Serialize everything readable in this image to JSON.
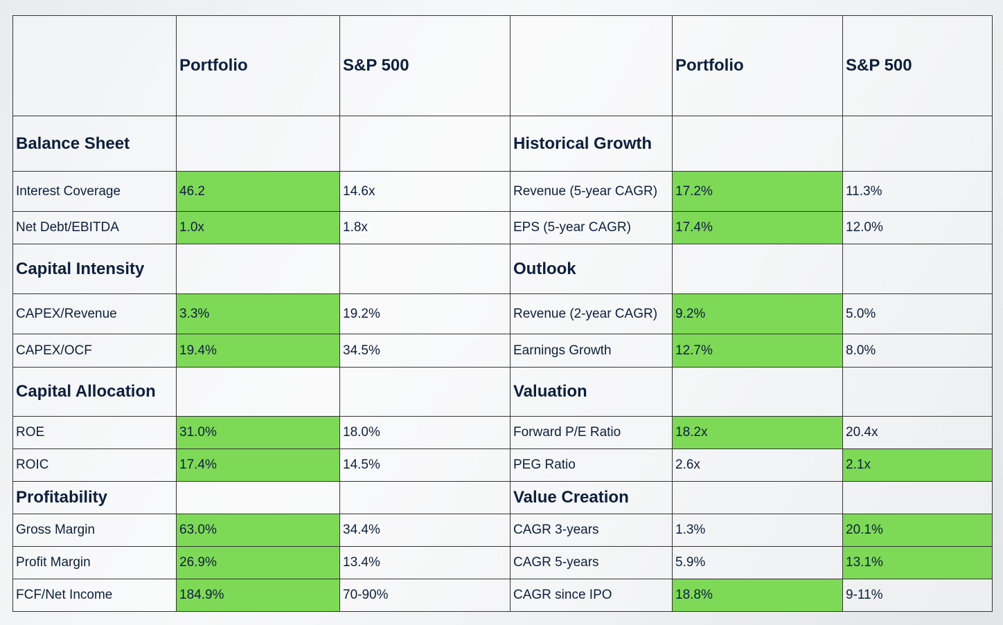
{
  "table": {
    "left": {
      "columns": [
        "Portfolio",
        "S&P 500"
      ],
      "groups": [
        {
          "title": "Balance Sheet",
          "rows": [
            [
              "Interest Coverage",
              "46.2",
              "14.6x"
            ],
            [
              "Net Debt/EBITDA",
              "1.0x",
              "1.8x"
            ]
          ]
        },
        {
          "title": "Capital Intensity",
          "rows": [
            [
              "CAPEX/Revenue",
              "3.3%",
              "19.2%"
            ],
            [
              "CAPEX/OCF",
              "19.4%",
              "34.5%"
            ]
          ]
        },
        {
          "title": "Capital Allocation",
          "rows": [
            [
              "ROE",
              "31.0%",
              "18.0%"
            ],
            [
              "ROIC",
              "17.4%",
              "14.5%"
            ]
          ]
        },
        {
          "title": "Profitability",
          "rows": [
            [
              "Gross Margin",
              "63.0%",
              "34.4%"
            ],
            [
              "Profit Margin",
              "26.9%",
              "13.4%"
            ],
            [
              "FCF/Net Income",
              "184.9%",
              "70-90%"
            ]
          ]
        }
      ]
    },
    "right": {
      "columns": [
        "Portfolio",
        "S&P 500"
      ],
      "groups": [
        {
          "title": "Historical Growth",
          "rows": [
            [
              "Revenue (5-year CAGR)",
              "17.2%",
              "11.3%"
            ],
            [
              "EPS (5-year CAGR)",
              "17.4%",
              "12.0%"
            ]
          ]
        },
        {
          "title": "Outlook",
          "rows": [
            [
              "Revenue (2-year CAGR)",
              "9.2%",
              "5.0%"
            ],
            [
              "Earnings Growth",
              "12.7%",
              "8.0%"
            ]
          ]
        },
        {
          "title": "Valuation",
          "rows": [
            [
              "Forward P/E Ratio",
              "18.2x",
              "20.4x"
            ],
            [
              "PEG Ratio",
              "2.6x",
              "2.1x"
            ]
          ]
        },
        {
          "title": "Value Creation",
          "rows": [
            [
              "CAGR 3-years",
              "1.3%",
              "20.1%"
            ],
            [
              "CAGR 5-years",
              "5.9%",
              "13.1%"
            ],
            [
              "CAGR since IPO",
              "18.8%",
              "9-11%"
            ]
          ]
        }
      ]
    }
  }
}
